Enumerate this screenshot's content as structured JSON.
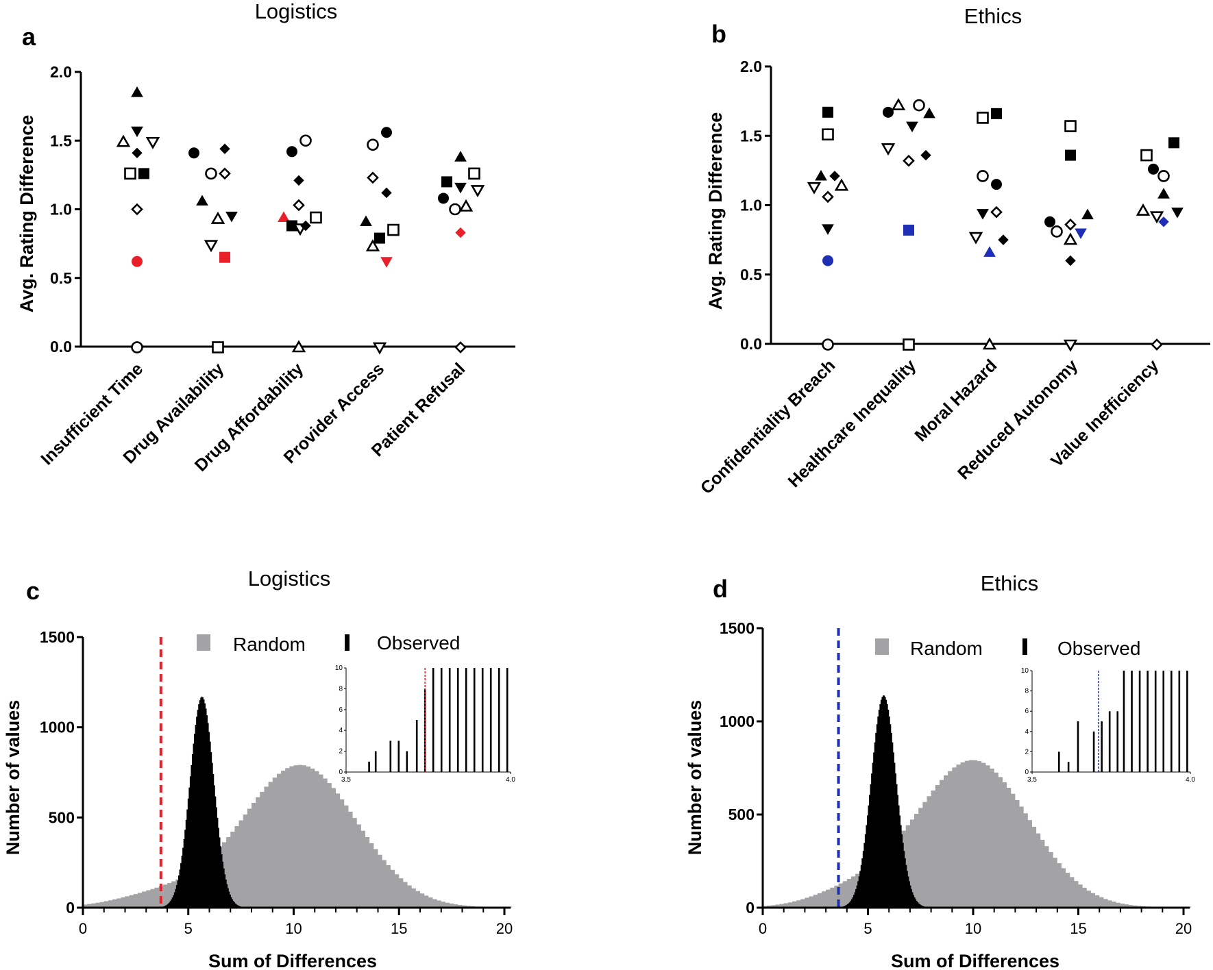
{
  "panels": {
    "a": {
      "letter": "a",
      "title": "Logistics",
      "ylabel": "Avg. Rating Difference",
      "categories": [
        "Insufficient Time",
        "Drug Availability",
        "Drug Affordability",
        "Provider Access",
        "Patient Refusal"
      ]
    },
    "b": {
      "letter": "b",
      "title": "Ethics",
      "ylabel": "Avg. Rating Difference",
      "categories": [
        "Confidentiality Breach",
        "Healthcare Inequality",
        "Moral Hazard",
        "Reduced Autonomy",
        "Value Inefficiency"
      ]
    },
    "c": {
      "letter": "c",
      "title": "Logistics",
      "ylabel": "Number of values",
      "xlabel": "Sum of Differences",
      "legend_random": "Random",
      "legend_observed": "Observed"
    },
    "d": {
      "letter": "d",
      "title": "Ethics",
      "ylabel": "Number of values",
      "xlabel": "Sum of Differences",
      "legend_random": "Random",
      "legend_observed": "Observed"
    }
  },
  "colors": {
    "highlight_logistics": "#e8202a",
    "highlight_ethics": "#1f2fb5",
    "random_hist": "#a3a3a6",
    "observed_hist": "#000000"
  },
  "chart_data": [
    {
      "panel": "a",
      "type": "scatter",
      "title": "Logistics",
      "ylabel": "Avg. Rating Difference",
      "ylim": [
        0,
        2.0
      ],
      "yticks": [
        "0.0",
        "0.5",
        "1.0",
        "1.5",
        "2.0"
      ],
      "categories": [
        "Insufficient Time",
        "Drug Availability",
        "Drug Affordability",
        "Provider Access",
        "Patient Refusal"
      ],
      "baseline_marker": [
        "circle",
        "square",
        "triangle-up",
        "triangle-down",
        "diamond"
      ],
      "points": [
        {
          "cat": 0,
          "dx": 0,
          "y": 1.85,
          "m": "tu",
          "f": "black"
        },
        {
          "cat": 0,
          "dx": 0,
          "y": 1.57,
          "m": "td",
          "f": "black"
        },
        {
          "cat": 0,
          "dx": -0.2,
          "y": 1.49,
          "m": "tu",
          "f": "open"
        },
        {
          "cat": 0,
          "dx": 0,
          "y": 1.41,
          "m": "d",
          "f": "black"
        },
        {
          "cat": 0,
          "dx": 0.23,
          "y": 1.49,
          "m": "td",
          "f": "open"
        },
        {
          "cat": 0,
          "dx": -0.1,
          "y": 1.26,
          "m": "s",
          "f": "open"
        },
        {
          "cat": 0,
          "dx": 0.1,
          "y": 1.26,
          "m": "s",
          "f": "black"
        },
        {
          "cat": 0,
          "dx": 0,
          "y": 1.0,
          "m": "d",
          "f": "open"
        },
        {
          "cat": 0,
          "dx": 0,
          "y": 0.62,
          "m": "c",
          "f": "red"
        },
        {
          "cat": 1,
          "dx": -0.35,
          "y": 1.41,
          "m": "c",
          "f": "black"
        },
        {
          "cat": 1,
          "dx": 0.1,
          "y": 1.44,
          "m": "d",
          "f": "black"
        },
        {
          "cat": 1,
          "dx": -0.1,
          "y": 1.26,
          "m": "c",
          "f": "open"
        },
        {
          "cat": 1,
          "dx": 0.1,
          "y": 1.26,
          "m": "d",
          "f": "open"
        },
        {
          "cat": 1,
          "dx": -0.23,
          "y": 1.06,
          "m": "tu",
          "f": "black"
        },
        {
          "cat": 1,
          "dx": 0,
          "y": 0.93,
          "m": "tu",
          "f": "open"
        },
        {
          "cat": 1,
          "dx": 0.2,
          "y": 0.95,
          "m": "td",
          "f": "black"
        },
        {
          "cat": 1,
          "dx": -0.1,
          "y": 0.74,
          "m": "td",
          "f": "open"
        },
        {
          "cat": 1,
          "dx": 0.1,
          "y": 0.65,
          "m": "s",
          "f": "red"
        },
        {
          "cat": 2,
          "dx": -0.1,
          "y": 1.42,
          "m": "c",
          "f": "black"
        },
        {
          "cat": 2,
          "dx": 0.1,
          "y": 1.5,
          "m": "c",
          "f": "open"
        },
        {
          "cat": 2,
          "dx": 0,
          "y": 1.21,
          "m": "d",
          "f": "black"
        },
        {
          "cat": 2,
          "dx": 0,
          "y": 1.03,
          "m": "d",
          "f": "open"
        },
        {
          "cat": 2,
          "dx": -0.22,
          "y": 0.94,
          "m": "tu",
          "f": "red"
        },
        {
          "cat": 2,
          "dx": -0.1,
          "y": 0.88,
          "m": "s",
          "f": "black"
        },
        {
          "cat": 2,
          "dx": 0.02,
          "y": 0.86,
          "m": "td",
          "f": "open"
        },
        {
          "cat": 2,
          "dx": 0.1,
          "y": 0.88,
          "m": "d",
          "f": "black"
        },
        {
          "cat": 2,
          "dx": 0.25,
          "y": 0.94,
          "m": "s",
          "f": "open"
        },
        {
          "cat": 3,
          "dx": -0.1,
          "y": 1.47,
          "m": "c",
          "f": "open"
        },
        {
          "cat": 3,
          "dx": 0.1,
          "y": 1.56,
          "m": "c",
          "f": "black"
        },
        {
          "cat": 3,
          "dx": -0.1,
          "y": 1.23,
          "m": "d",
          "f": "open"
        },
        {
          "cat": 3,
          "dx": 0.1,
          "y": 1.12,
          "m": "d",
          "f": "black"
        },
        {
          "cat": 3,
          "dx": -0.2,
          "y": 0.91,
          "m": "tu",
          "f": "black"
        },
        {
          "cat": 3,
          "dx": 0.2,
          "y": 0.85,
          "m": "s",
          "f": "open"
        },
        {
          "cat": 3,
          "dx": 0,
          "y": 0.79,
          "m": "s",
          "f": "black"
        },
        {
          "cat": 3,
          "dx": -0.1,
          "y": 0.73,
          "m": "tu",
          "f": "open"
        },
        {
          "cat": 3,
          "dx": 0.1,
          "y": 0.62,
          "m": "td",
          "f": "red"
        },
        {
          "cat": 4,
          "dx": 0,
          "y": 1.38,
          "m": "tu",
          "f": "black"
        },
        {
          "cat": 4,
          "dx": -0.2,
          "y": 1.2,
          "m": "s",
          "f": "black"
        },
        {
          "cat": 4,
          "dx": 0.2,
          "y": 1.26,
          "m": "s",
          "f": "open"
        },
        {
          "cat": 4,
          "dx": 0,
          "y": 1.16,
          "m": "td",
          "f": "black"
        },
        {
          "cat": 4,
          "dx": -0.25,
          "y": 1.08,
          "m": "c",
          "f": "black"
        },
        {
          "cat": 4,
          "dx": 0.25,
          "y": 1.14,
          "m": "td",
          "f": "open"
        },
        {
          "cat": 4,
          "dx": -0.08,
          "y": 1.0,
          "m": "c",
          "f": "open"
        },
        {
          "cat": 4,
          "dx": 0.08,
          "y": 1.02,
          "m": "tu",
          "f": "open"
        },
        {
          "cat": 4,
          "dx": 0,
          "y": 0.83,
          "m": "d",
          "f": "red"
        }
      ]
    },
    {
      "panel": "b",
      "type": "scatter",
      "title": "Ethics",
      "ylabel": "Avg. Rating Difference",
      "ylim": [
        0,
        2.0
      ],
      "yticks": [
        "0.0",
        "0.5",
        "1.0",
        "1.5",
        "2.0"
      ],
      "categories": [
        "Confidentiality Breach",
        "Healthcare Inequality",
        "Moral Hazard",
        "Reduced Autonomy",
        "Value Inefficiency"
      ],
      "baseline_marker": [
        "circle",
        "square",
        "triangle-up",
        "triangle-down",
        "diamond"
      ],
      "points": [
        {
          "cat": 0,
          "dx": 0,
          "y": 1.67,
          "m": "s",
          "f": "black"
        },
        {
          "cat": 0,
          "dx": 0,
          "y": 1.51,
          "m": "s",
          "f": "open"
        },
        {
          "cat": 0,
          "dx": -0.1,
          "y": 1.21,
          "m": "tu",
          "f": "black"
        },
        {
          "cat": 0,
          "dx": 0.1,
          "y": 1.21,
          "m": "d",
          "f": "black"
        },
        {
          "cat": 0,
          "dx": -0.2,
          "y": 1.13,
          "m": "td",
          "f": "open"
        },
        {
          "cat": 0,
          "dx": 0.2,
          "y": 1.14,
          "m": "tu",
          "f": "open"
        },
        {
          "cat": 0,
          "dx": 0,
          "y": 1.06,
          "m": "d",
          "f": "open"
        },
        {
          "cat": 0,
          "dx": 0,
          "y": 0.83,
          "m": "td",
          "f": "black"
        },
        {
          "cat": 0,
          "dx": 0,
          "y": 0.6,
          "m": "c",
          "f": "blue"
        },
        {
          "cat": 1,
          "dx": -0.3,
          "y": 1.67,
          "m": "c",
          "f": "black"
        },
        {
          "cat": 1,
          "dx": -0.15,
          "y": 1.72,
          "m": "tu",
          "f": "open"
        },
        {
          "cat": 1,
          "dx": 0.15,
          "y": 1.72,
          "m": "c",
          "f": "open"
        },
        {
          "cat": 1,
          "dx": 0.3,
          "y": 1.66,
          "m": "tu",
          "f": "black"
        },
        {
          "cat": 1,
          "dx": 0.05,
          "y": 1.57,
          "m": "td",
          "f": "black"
        },
        {
          "cat": 1,
          "dx": -0.3,
          "y": 1.41,
          "m": "td",
          "f": "open"
        },
        {
          "cat": 1,
          "dx": 0,
          "y": 1.32,
          "m": "d",
          "f": "open"
        },
        {
          "cat": 1,
          "dx": 0.25,
          "y": 1.36,
          "m": "d",
          "f": "black"
        },
        {
          "cat": 1,
          "dx": 0,
          "y": 0.82,
          "m": "s",
          "f": "blue"
        },
        {
          "cat": 2,
          "dx": -0.1,
          "y": 1.63,
          "m": "s",
          "f": "open"
        },
        {
          "cat": 2,
          "dx": 0.1,
          "y": 1.66,
          "m": "s",
          "f": "black"
        },
        {
          "cat": 2,
          "dx": -0.1,
          "y": 1.21,
          "m": "c",
          "f": "open"
        },
        {
          "cat": 2,
          "dx": 0.1,
          "y": 1.15,
          "m": "c",
          "f": "black"
        },
        {
          "cat": 2,
          "dx": -0.1,
          "y": 0.94,
          "m": "td",
          "f": "black"
        },
        {
          "cat": 2,
          "dx": 0.1,
          "y": 0.95,
          "m": "d",
          "f": "open"
        },
        {
          "cat": 2,
          "dx": -0.2,
          "y": 0.77,
          "m": "td",
          "f": "open"
        },
        {
          "cat": 2,
          "dx": 0.2,
          "y": 0.75,
          "m": "d",
          "f": "black"
        },
        {
          "cat": 2,
          "dx": 0,
          "y": 0.66,
          "m": "tu",
          "f": "blue"
        },
        {
          "cat": 3,
          "dx": 0,
          "y": 1.57,
          "m": "s",
          "f": "open"
        },
        {
          "cat": 3,
          "dx": 0,
          "y": 1.36,
          "m": "s",
          "f": "black"
        },
        {
          "cat": 3,
          "dx": -0.3,
          "y": 0.88,
          "m": "c",
          "f": "black"
        },
        {
          "cat": 3,
          "dx": -0.2,
          "y": 0.81,
          "m": "c",
          "f": "open"
        },
        {
          "cat": 3,
          "dx": 0,
          "y": 0.86,
          "m": "d",
          "f": "open"
        },
        {
          "cat": 3,
          "dx": 0.25,
          "y": 0.93,
          "m": "tu",
          "f": "black"
        },
        {
          "cat": 3,
          "dx": 0,
          "y": 0.75,
          "m": "tu",
          "f": "open"
        },
        {
          "cat": 3,
          "dx": 0.15,
          "y": 0.8,
          "m": "td",
          "f": "blue"
        },
        {
          "cat": 3,
          "dx": 0,
          "y": 0.6,
          "m": "d",
          "f": "black"
        },
        {
          "cat": 4,
          "dx": -0.15,
          "y": 1.36,
          "m": "s",
          "f": "open"
        },
        {
          "cat": 4,
          "dx": 0.25,
          "y": 1.45,
          "m": "s",
          "f": "black"
        },
        {
          "cat": 4,
          "dx": -0.05,
          "y": 1.26,
          "m": "c",
          "f": "black"
        },
        {
          "cat": 4,
          "dx": 0.1,
          "y": 1.21,
          "m": "c",
          "f": "open"
        },
        {
          "cat": 4,
          "dx": 0.1,
          "y": 1.08,
          "m": "tu",
          "f": "black"
        },
        {
          "cat": 4,
          "dx": -0.2,
          "y": 0.96,
          "m": "tu",
          "f": "open"
        },
        {
          "cat": 4,
          "dx": 0,
          "y": 0.92,
          "m": "td",
          "f": "open"
        },
        {
          "cat": 4,
          "dx": 0.3,
          "y": 0.95,
          "m": "td",
          "f": "black"
        },
        {
          "cat": 4,
          "dx": 0.1,
          "y": 0.88,
          "m": "d",
          "f": "blue"
        }
      ]
    },
    {
      "panel": "c",
      "type": "histogram",
      "title": "Logistics",
      "xlabel": "Sum of Differences",
      "ylabel": "Number of values",
      "xlim": [
        0,
        20.3
      ],
      "ylim": [
        0,
        1500
      ],
      "xticks": [
        "0",
        "5",
        "10",
        "15",
        "20"
      ],
      "yticks": [
        "0",
        "500",
        "1000",
        "1500"
      ],
      "observed_value": 3.7,
      "random": {
        "mu": 10.3,
        "sigma": 2.7,
        "peak": 790,
        "tail_mu": 4.0,
        "tail_sigma": 2.2,
        "tail_peak": 80
      },
      "observed": {
        "mu": 5.65,
        "sigma": 0.57,
        "peak": 1170
      },
      "inset": {
        "xlim": [
          3.5,
          4.0
        ],
        "ylim": [
          0,
          10
        ],
        "xticks": [
          "3.5",
          "4.0"
        ],
        "yticks": [
          "0",
          "2",
          "4",
          "6",
          "8",
          "10"
        ],
        "marker": 3.74,
        "bars": [
          [
            3.57,
            1
          ],
          [
            3.59,
            2
          ],
          [
            3.635,
            3
          ],
          [
            3.66,
            3
          ],
          [
            3.685,
            2
          ],
          [
            3.715,
            5
          ],
          [
            3.74,
            8
          ],
          [
            3.765,
            10
          ],
          [
            3.79,
            10
          ],
          [
            3.815,
            10
          ],
          [
            3.84,
            10
          ],
          [
            3.865,
            10
          ],
          [
            3.89,
            10
          ],
          [
            3.915,
            10
          ],
          [
            3.94,
            10
          ],
          [
            3.965,
            10
          ],
          [
            3.99,
            10
          ]
        ]
      }
    },
    {
      "panel": "d",
      "type": "histogram",
      "title": "Ethics",
      "xlabel": "Sum of Differences",
      "ylabel": "Number of values",
      "xlim": [
        0,
        20.3
      ],
      "ylim": [
        0,
        1500
      ],
      "xticks": [
        "0",
        "5",
        "10",
        "15",
        "20"
      ],
      "yticks": [
        "0",
        "500",
        "1000",
        "1500"
      ],
      "observed_value": 3.6,
      "random": {
        "mu": 10.0,
        "sigma": 2.65,
        "peak": 790,
        "tail_mu": 4.5,
        "tail_sigma": 2.0,
        "tail_peak": 90
      },
      "observed": {
        "mu": 5.75,
        "sigma": 0.6,
        "peak": 1140
      },
      "inset": {
        "xlim": [
          3.5,
          4.0
        ],
        "ylim": [
          0,
          10
        ],
        "xticks": [
          "3.5",
          "4.0"
        ],
        "yticks": [
          "0",
          "2",
          "4",
          "6",
          "8",
          "10"
        ],
        "marker": 3.71,
        "bars": [
          [
            3.585,
            2
          ],
          [
            3.615,
            1
          ],
          [
            3.645,
            5
          ],
          [
            3.695,
            4
          ],
          [
            3.72,
            5
          ],
          [
            3.745,
            6
          ],
          [
            3.77,
            6
          ],
          [
            3.79,
            10
          ],
          [
            3.815,
            10
          ],
          [
            3.84,
            10
          ],
          [
            3.865,
            10
          ],
          [
            3.89,
            10
          ],
          [
            3.915,
            10
          ],
          [
            3.94,
            10
          ],
          [
            3.965,
            10
          ],
          [
            3.99,
            10
          ]
        ]
      }
    }
  ]
}
